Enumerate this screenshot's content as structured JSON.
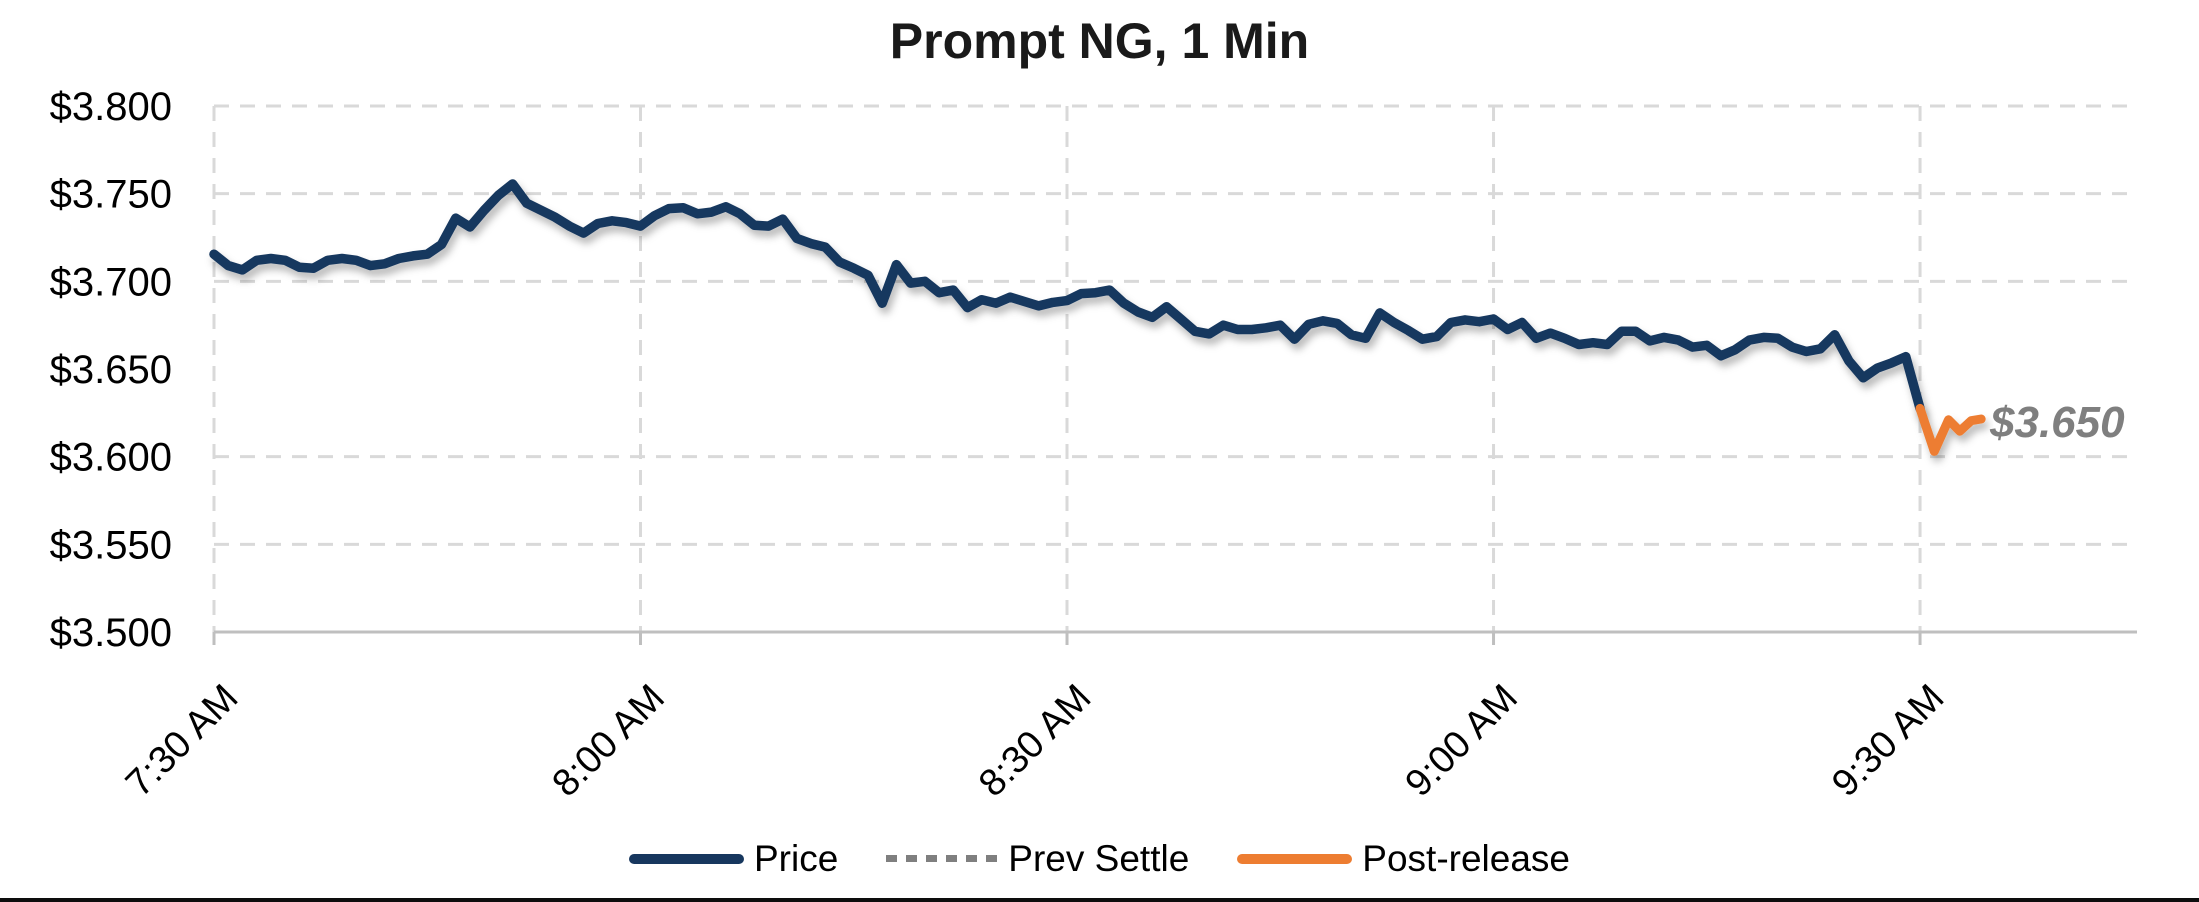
{
  "chart_data": {
    "type": "line",
    "title": "Prompt NG, 1 Min",
    "xlabel": "",
    "ylabel": "",
    "grid": true,
    "legend_position": "bottom-center",
    "y_axis": {
      "min": 3.5,
      "max": 3.8,
      "step": 0.05,
      "tick_labels": [
        "$3.500",
        "$3.550",
        "$3.600",
        "$3.650",
        "$3.700",
        "$3.750",
        "$3.800"
      ],
      "tick_values": [
        3.5,
        3.55,
        3.6,
        3.65,
        3.7,
        3.75,
        3.8
      ]
    },
    "x_axis": {
      "tick_labels": [
        "7:30 AM",
        "8:00 AM",
        "8:30 AM",
        "9:00 AM",
        "9:30 AM"
      ],
      "tick_minutes": [
        0,
        30,
        60,
        90,
        120
      ],
      "start_time": "7:30 AM",
      "minutes_per_point": 1,
      "right_extent_minutes": 135
    },
    "legend": [
      "Price",
      "Prev Settle",
      "Post-release"
    ],
    "end_label": {
      "text": "$3.650",
      "color": "#7f7f7f"
    },
    "series": [
      {
        "name": "Price",
        "color": "#17375E",
        "style": "solid",
        "start_minute": 0,
        "values": [
          3.7155,
          3.709,
          3.7065,
          3.712,
          3.713,
          3.712,
          3.708,
          3.7075,
          3.712,
          3.713,
          3.712,
          3.709,
          3.71,
          3.713,
          3.7145,
          3.7155,
          3.721,
          3.736,
          3.731,
          3.7405,
          3.749,
          3.7555,
          3.7445,
          3.7405,
          3.7365,
          3.7315,
          3.7275,
          3.733,
          3.7345,
          3.7335,
          3.7315,
          3.7375,
          3.7415,
          3.742,
          3.7385,
          3.7395,
          3.7425,
          3.7385,
          3.732,
          3.7315,
          3.7355,
          3.7245,
          3.7215,
          3.7195,
          3.711,
          3.7075,
          3.7035,
          3.6875,
          3.7095,
          3.699,
          3.7,
          3.6935,
          3.695,
          3.685,
          3.6895,
          3.6875,
          3.691,
          3.6885,
          3.686,
          3.688,
          3.689,
          3.693,
          3.6935,
          3.695,
          3.6875,
          3.6825,
          3.6795,
          3.6855,
          3.6785,
          3.6715,
          3.67,
          3.675,
          3.6725,
          3.6725,
          3.6735,
          3.675,
          3.667,
          3.6755,
          3.6775,
          3.676,
          3.6695,
          3.6675,
          3.682,
          3.6765,
          3.672,
          3.667,
          3.6685,
          3.6765,
          3.678,
          3.677,
          3.6785,
          3.6725,
          3.6765,
          3.6675,
          3.6705,
          3.6675,
          3.664,
          3.665,
          3.664,
          3.6715,
          3.6715,
          3.666,
          3.668,
          3.6665,
          3.6625,
          3.6635,
          3.6575,
          3.661,
          3.6665,
          3.668,
          3.6675,
          3.6625,
          3.66,
          3.6615,
          3.6695,
          3.6545,
          3.645,
          3.6505,
          3.6535,
          3.657,
          3.6275
        ]
      },
      {
        "name": "Prev Settle",
        "color": "#7f7f7f",
        "style": "dashed",
        "value": 3.65
      },
      {
        "name": "Post-release",
        "color": "#ED7D31",
        "style": "solid",
        "points": [
          [
            120,
            3.6275
          ],
          [
            121,
            3.603
          ],
          [
            122,
            3.621
          ],
          [
            122.8,
            3.6145
          ],
          [
            123.6,
            3.6205
          ],
          [
            124.3,
            3.6215
          ]
        ]
      }
    ],
    "gridline_color": "#d9d9d9",
    "axis_color": "#bfbfbf",
    "text_color": "#000000"
  }
}
